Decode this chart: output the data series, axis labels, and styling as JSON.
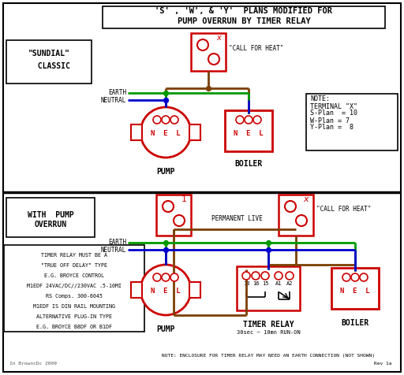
{
  "title_line1": "'S' , 'W', & 'Y'  PLANS MODIFIED FOR",
  "title_line2": "PUMP OVERRUN BY TIMER RELAY",
  "bg_color": "#ffffff",
  "red": "#cc0000",
  "green": "#009900",
  "blue": "#0000cc",
  "brown": "#7B3F00",
  "black": "#000000",
  "top_section_label": "\"SUNDIAL\"\n  CLASSIC",
  "bottom_section_label_1": "WITH  PUMP",
  "bottom_section_label_2": "OVERRUN",
  "note_text": "NOTE:\nTERMINAL \"X\"\nS-Plan  = 10\nW-Plan = 7\nY-Plan =  8",
  "timer_note_line1": "TIMER RELAY MUST BE A",
  "timer_note_line2": "\"TRUE OFF DELAY\" TYPE",
  "timer_note_line3": "E.G. BROYCE CONTROL",
  "timer_note_line4": "M1EDF 24VAC/DC//230VAC .5-10MI",
  "timer_note_line5": "RS Comps. 300-6045",
  "timer_note_line6": "M1EDF IS DIN RAIL MOUNTING",
  "timer_note_line7": "ALTERNATIVE PLUG-IN TYPE",
  "timer_note_line8": "E.G. BROYCE B8DF OR B1DF",
  "bottom_note": "NOTE: ENCLOSURE FOR TIMER RELAY MAY NEED AN EARTH CONNECTION (NOT SHOWN)",
  "pump_label": "PUMP",
  "boiler_label": "BOILER",
  "timer_relay_label": "TIMER RELAY",
  "timer_relay_sublabel": "30sec ~ 10mn RUN-ON",
  "permanent_live": "PERMANENT LIVE",
  "call_for_heat_top": "\"CALL FOR HEAT\"",
  "call_for_heat_bottom": "\"CALL FOR HEAT\"",
  "earth_label": "EARTH",
  "neutral_label": "NEUTRAL",
  "watermark": "In BrowncDc 2009",
  "rev": "Rev 1a"
}
